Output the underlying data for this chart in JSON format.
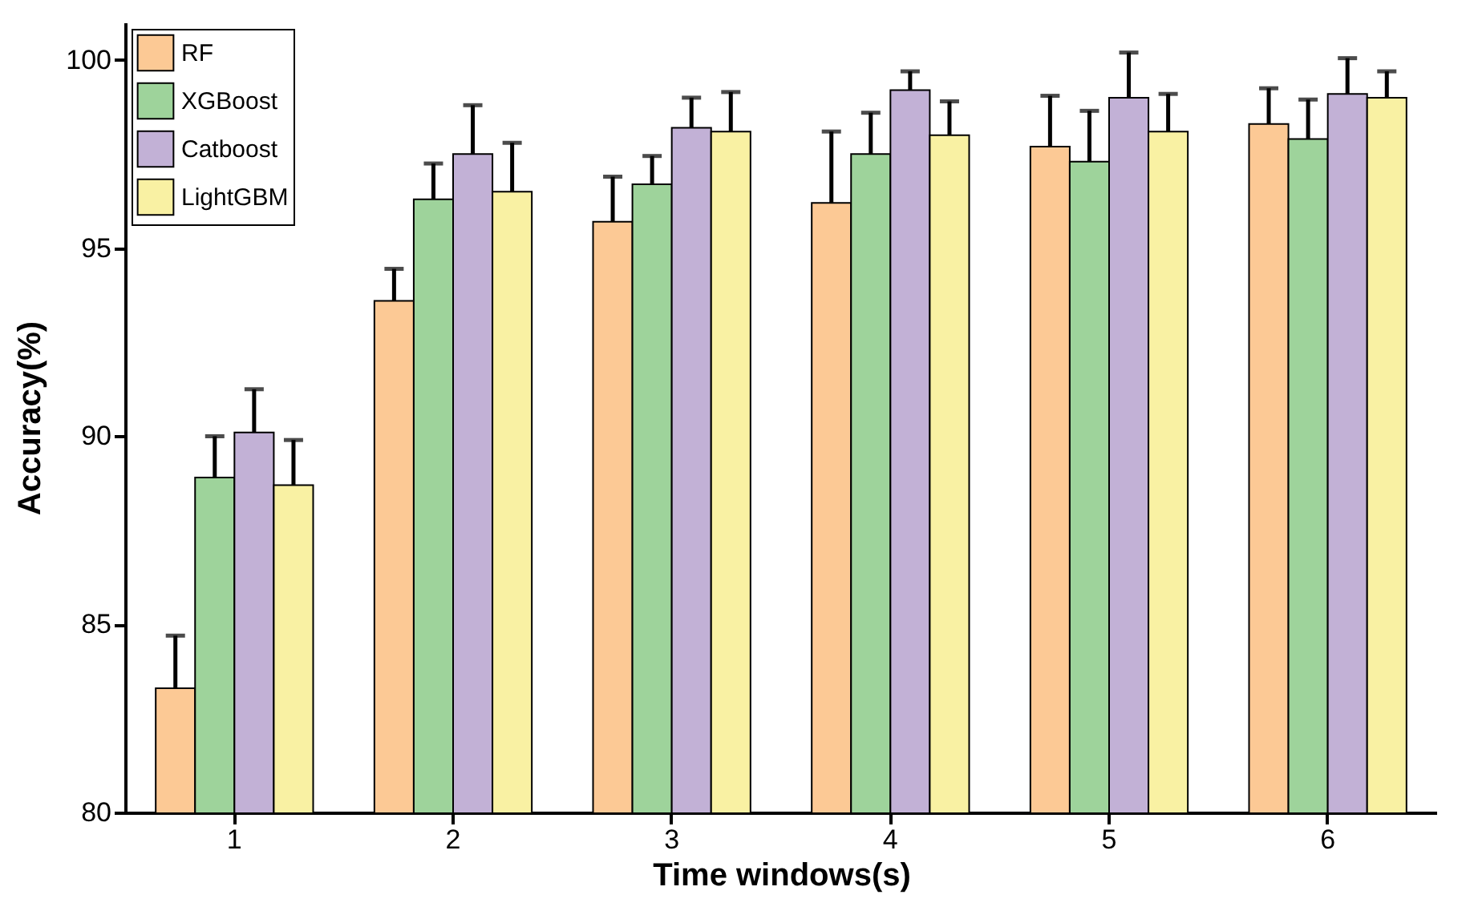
{
  "chart_data": {
    "type": "bar",
    "xlabel": "Time windows(s)",
    "ylabel": "Accuracy(%)",
    "categories": [
      "1",
      "2",
      "3",
      "4",
      "5",
      "6"
    ],
    "ylim": [
      80,
      101
    ],
    "yticks": [
      80,
      85,
      90,
      95,
      100
    ],
    "grid": false,
    "legend": "top left",
    "series": [
      {
        "name": "RF",
        "color": "#fcc995",
        "values": [
          83.3,
          93.6,
          95.7,
          96.2,
          97.7,
          98.3
        ],
        "errors": [
          1.4,
          0.85,
          1.2,
          1.9,
          1.35,
          0.95
        ]
      },
      {
        "name": "XGBoost",
        "color": "#9ed39b",
        "values": [
          88.9,
          96.3,
          96.7,
          97.5,
          97.3,
          97.9
        ],
        "errors": [
          1.1,
          0.95,
          0.75,
          1.1,
          1.35,
          1.05
        ]
      },
      {
        "name": "Catboost",
        "color": "#c2b1d6",
        "values": [
          90.1,
          97.5,
          98.2,
          99.2,
          99.0,
          99.1
        ],
        "errors": [
          1.15,
          1.3,
          0.8,
          0.5,
          1.2,
          0.95
        ]
      },
      {
        "name": "LightGBM",
        "color": "#f9f1a3",
        "values": [
          88.7,
          96.5,
          98.1,
          98.0,
          98.1,
          99.0
        ],
        "errors": [
          1.2,
          1.3,
          1.05,
          0.9,
          1.0,
          0.7
        ]
      }
    ]
  }
}
